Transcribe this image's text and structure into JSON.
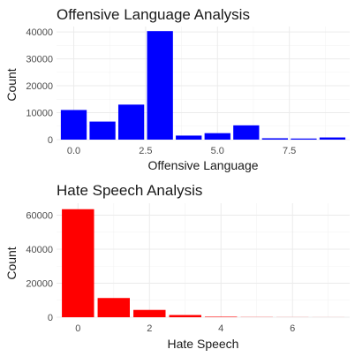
{
  "chart_data": [
    {
      "type": "bar",
      "title": "Offensive Language Analysis",
      "xlabel": "Offensive Language",
      "ylabel": "Count",
      "x": [
        0,
        1,
        2,
        3,
        4,
        5,
        6,
        7,
        8,
        9
      ],
      "values": [
        11000,
        6700,
        13000,
        40300,
        1500,
        2400,
        5300,
        500,
        400,
        800
      ],
      "color": "#0000ff",
      "xlim": [
        -0.6,
        9.6
      ],
      "ylim": [
        0,
        42000
      ],
      "xticks": [
        0,
        2.5,
        5,
        7.5
      ],
      "xtick_labels": [
        "0.0",
        "2.5",
        "5.0",
        "7.5"
      ],
      "yticks": [
        0,
        10000,
        20000,
        30000,
        40000
      ],
      "ytick_labels": [
        "0",
        "10000",
        "20000",
        "30000",
        "40000"
      ],
      "grid": true
    },
    {
      "type": "bar",
      "title": "Hate Speech Analysis",
      "xlabel": "Hate Speech",
      "ylabel": "Count",
      "x": [
        0,
        1,
        2,
        3,
        4,
        5,
        6,
        7
      ],
      "values": [
        63500,
        11300,
        4300,
        1300,
        300,
        100,
        50,
        30
      ],
      "color": "#ff0000",
      "xlim": [
        -0.6,
        7.6
      ],
      "ylim": [
        0,
        67000
      ],
      "xticks": [
        0,
        2,
        4,
        6
      ],
      "xtick_labels": [
        "0",
        "2",
        "4",
        "6"
      ],
      "yticks": [
        0,
        20000,
        40000,
        60000
      ],
      "ytick_labels": [
        "0",
        "20000",
        "40000",
        "60000"
      ],
      "grid": true
    }
  ]
}
